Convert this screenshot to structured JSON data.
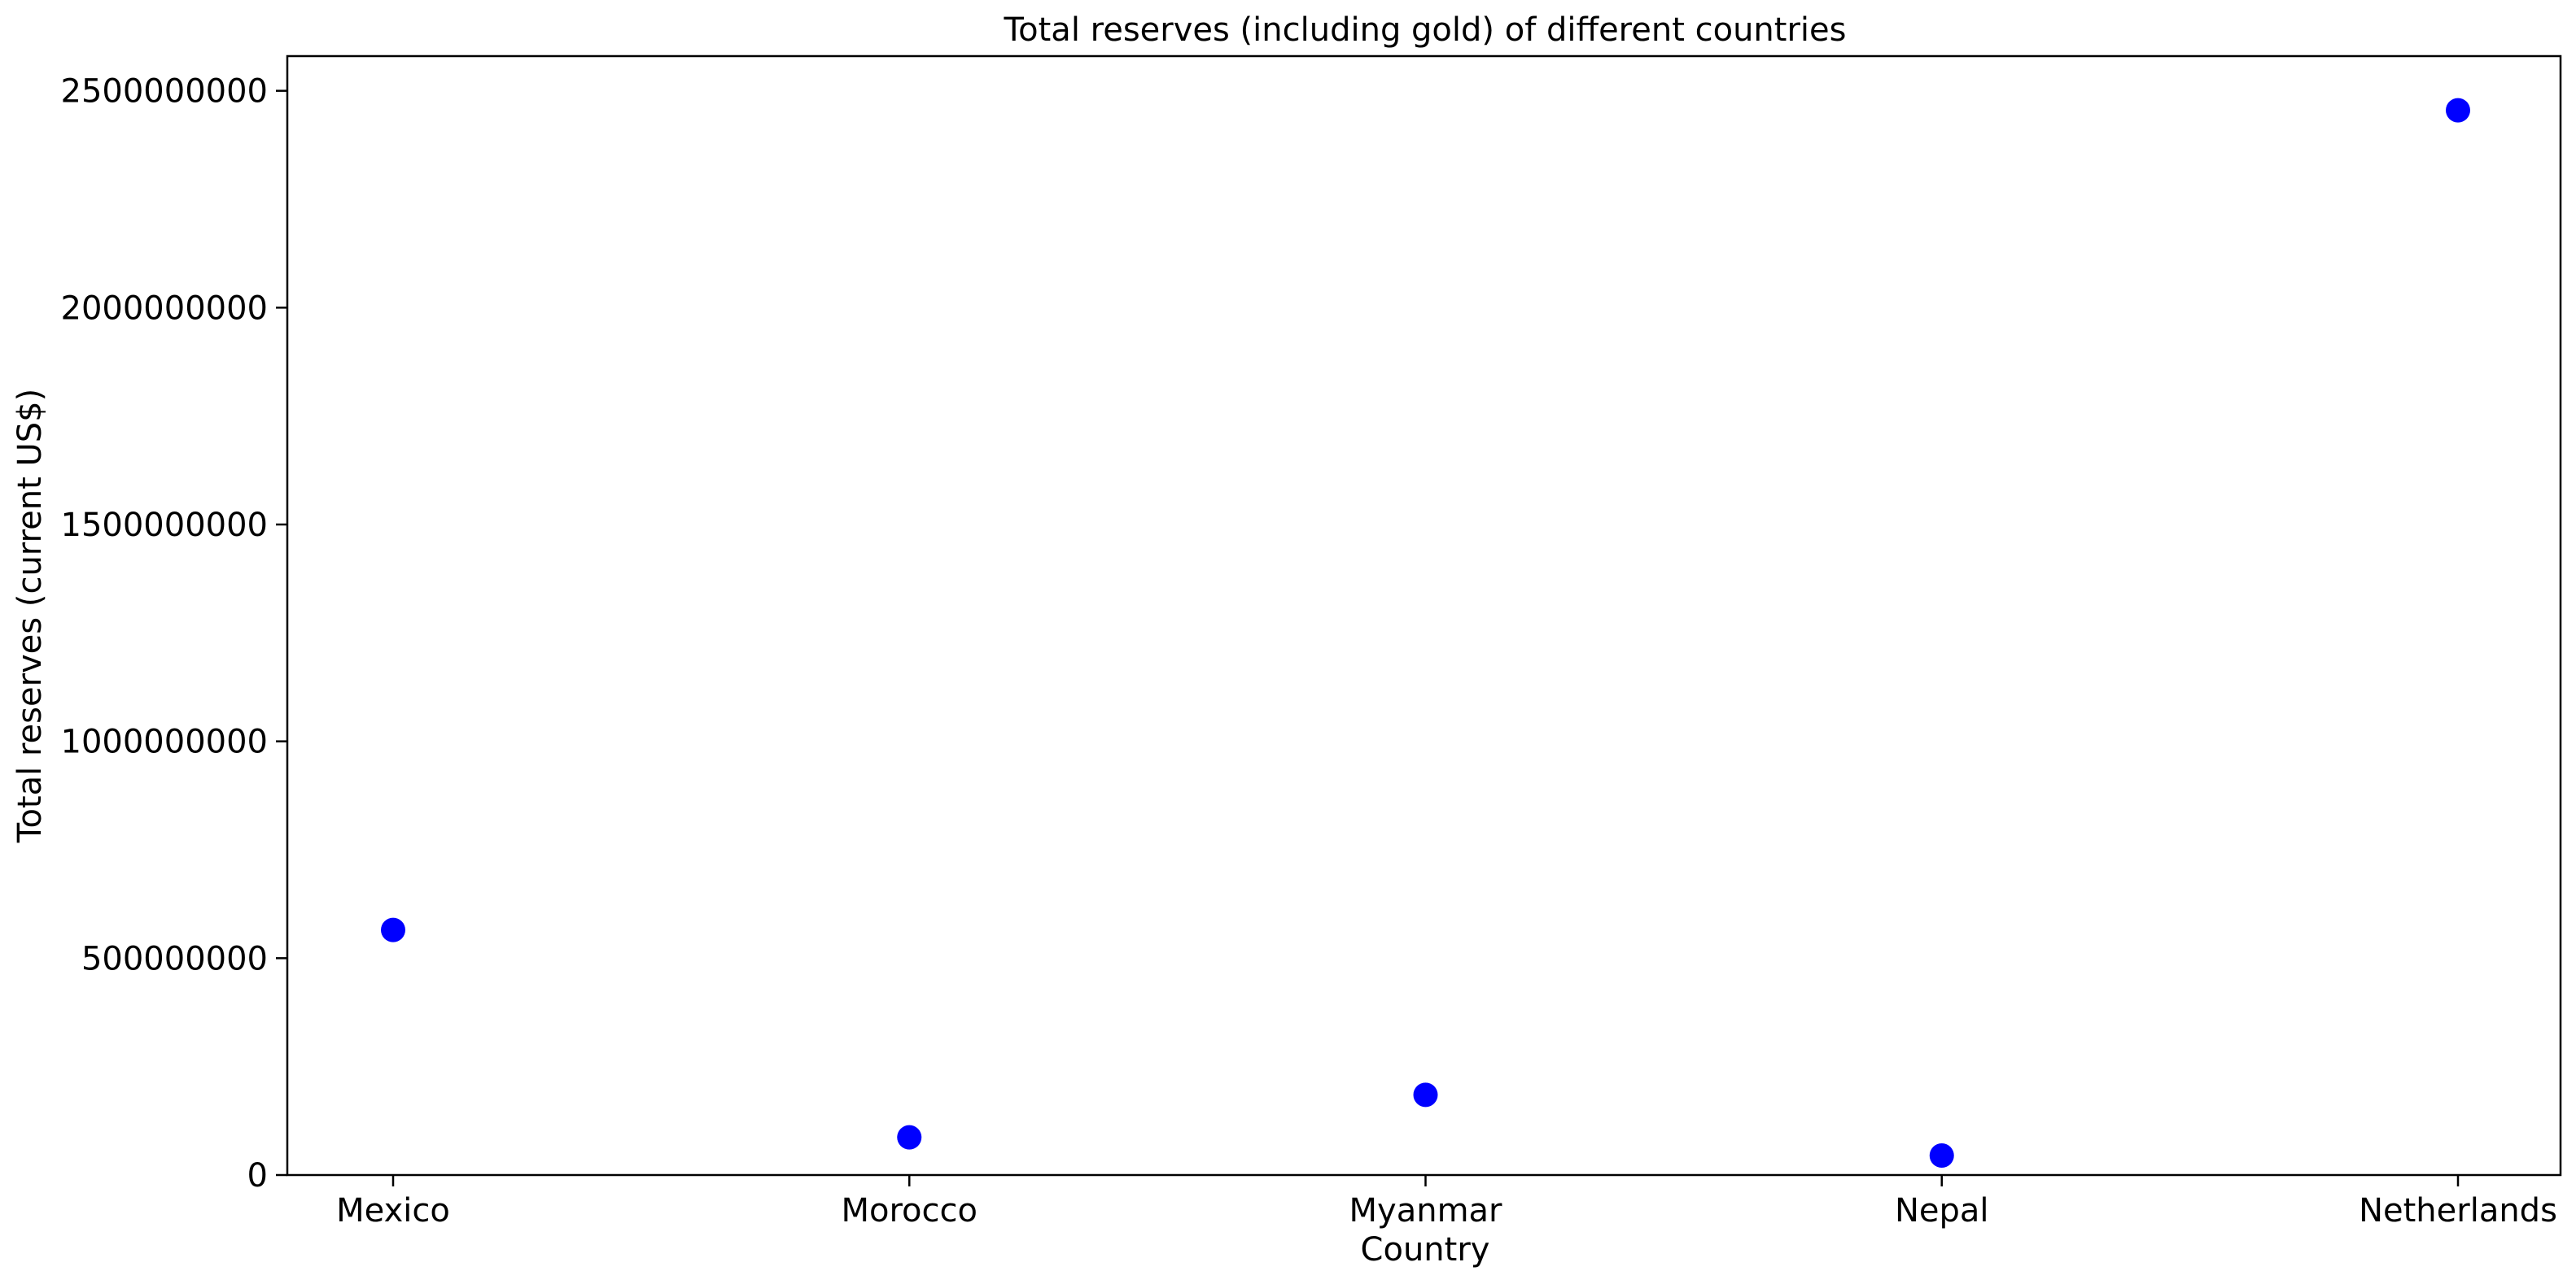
{
  "chart_data": {
    "type": "scatter",
    "title": "Total reserves (including gold) of different countries",
    "xlabel": "Country",
    "ylabel": "Total reserves (current US$)",
    "categories": [
      "Mexico",
      "Morocco",
      "Myanmar",
      "Nepal",
      "Netherlands"
    ],
    "series": [
      {
        "values": [
          565000000,
          87000000,
          185000000,
          45000000,
          2455000000
        ],
        "color": "#0000ff"
      }
    ],
    "ylim": [
      0,
      2580000000
    ],
    "yticks": [
      0,
      500000000,
      1000000000,
      1500000000,
      2000000000,
      2500000000
    ],
    "ytick_labels": [
      "0",
      "500000000",
      "1000000000",
      "1500000000",
      "2000000000",
      "2500000000"
    ],
    "grid": false,
    "legend": "none"
  }
}
